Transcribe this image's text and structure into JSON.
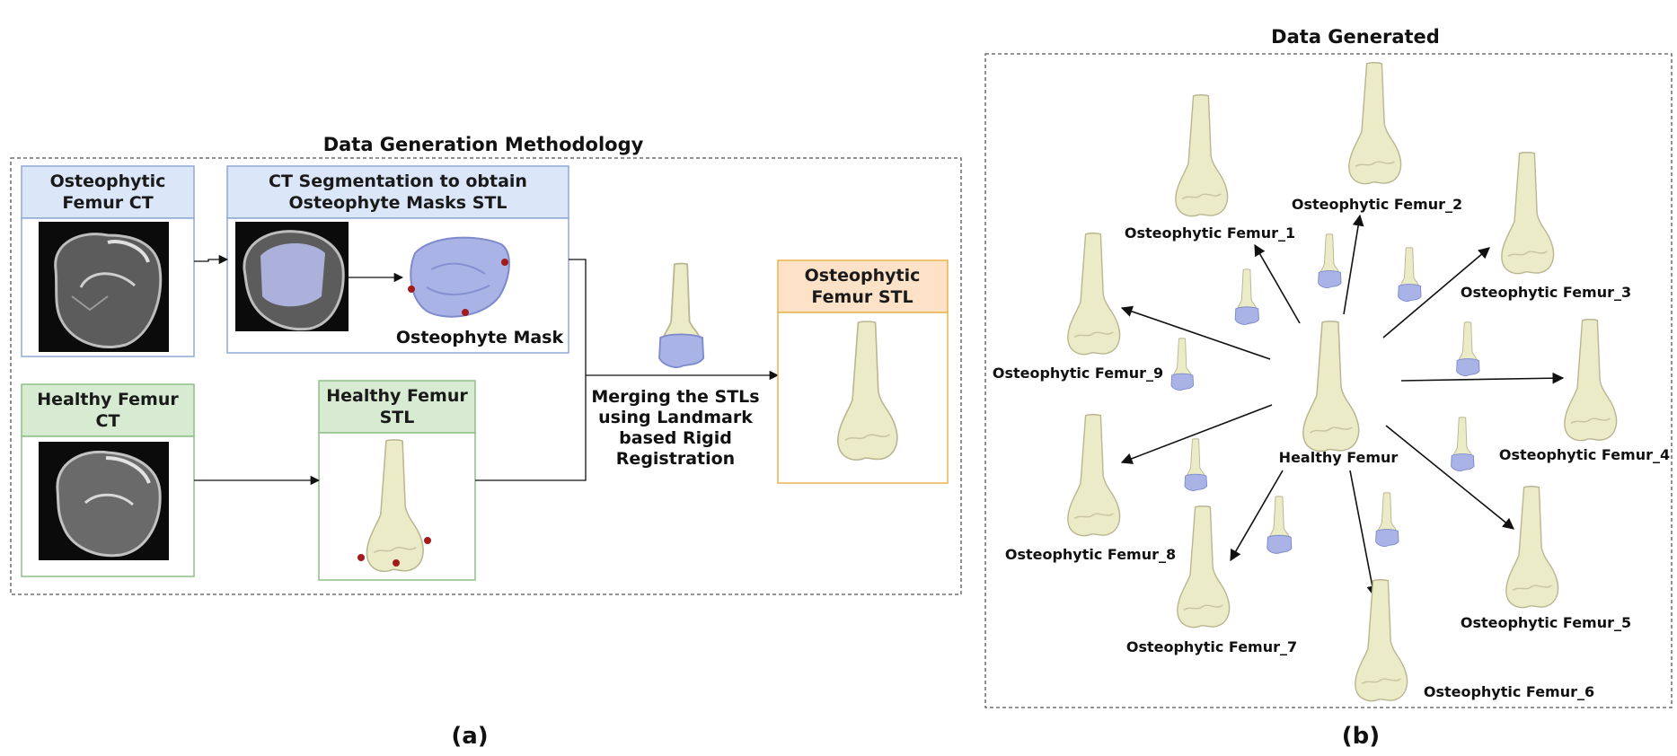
{
  "panel_a": {
    "title": "Data Generation Methodology",
    "osteophytic_ct": {
      "line1": "Osteophytic",
      "line2": "Femur CT"
    },
    "ct_segmentation": {
      "line1": "CT Segmentation to obtain",
      "line2": "Osteophyte Masks STL"
    },
    "osteophyte_mask": "Osteophyte Mask",
    "healthy_ct": {
      "line1": "Healthy Femur",
      "line2": "CT"
    },
    "healthy_stl": {
      "line1": "Healthy Femur",
      "line2": "STL"
    },
    "merge_text": {
      "line1": "Merging the STLs",
      "line2": "using Landmark",
      "line3": "based Rigid",
      "line4": "Registration"
    },
    "output_stl": {
      "line1": "Osteophytic",
      "line2": "Femur STL"
    },
    "caption": "(a)",
    "colors": {
      "blue_header": "#dbe7f8",
      "blue_border": "#8fa9d4",
      "green_header": "#d7ebd3",
      "green_border": "#8fbf86",
      "orange_header": "#fde2c8",
      "orange_border": "#e8b44e",
      "bone": "#ecebc8",
      "mask": "#a9b3e6",
      "landmark": "#a31b1b"
    }
  },
  "panel_b": {
    "title": "Data Generated",
    "center": "Healthy Femur",
    "outputs": [
      "Osteophytic Femur_1",
      "Osteophytic Femur_2",
      "Osteophytic Femur_3",
      "Osteophytic Femur_4",
      "Osteophytic Femur_5",
      "Osteophytic Femur_6",
      "Osteophytic Femur_7",
      "Osteophytic Femur_8",
      "Osteophytic Femur_9"
    ],
    "caption": "(b)"
  }
}
